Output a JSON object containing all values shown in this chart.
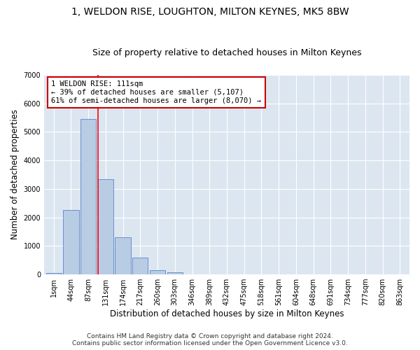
{
  "title": "1, WELDON RISE, LOUGHTON, MILTON KEYNES, MK5 8BW",
  "subtitle": "Size of property relative to detached houses in Milton Keynes",
  "xlabel": "Distribution of detached houses by size in Milton Keynes",
  "ylabel": "Number of detached properties",
  "footer_line1": "Contains HM Land Registry data © Crown copyright and database right 2024.",
  "footer_line2": "Contains public sector information licensed under the Open Government Licence v3.0.",
  "bar_labels": [
    "1sqm",
    "44sqm",
    "87sqm",
    "131sqm",
    "174sqm",
    "217sqm",
    "260sqm",
    "303sqm",
    "346sqm",
    "389sqm",
    "432sqm",
    "475sqm",
    "518sqm",
    "561sqm",
    "604sqm",
    "648sqm",
    "691sqm",
    "734sqm",
    "777sqm",
    "820sqm",
    "863sqm"
  ],
  "bar_values": [
    50,
    2250,
    5450,
    3350,
    1300,
    600,
    150,
    80,
    0,
    0,
    0,
    0,
    0,
    0,
    0,
    0,
    0,
    0,
    0,
    0,
    0
  ],
  "bar_color": "#b8cce4",
  "bar_edge_color": "#4472c4",
  "fig_bg_color": "#ffffff",
  "plot_bg_color": "#dce6f1",
  "annotation_line1": "1 WELDON RISE: 111sqm",
  "annotation_line2": "← 39% of detached houses are smaller (5,107)",
  "annotation_line3": "61% of semi-detached houses are larger (8,070) →",
  "annotation_box_color": "#ffffff",
  "annotation_box_edge": "#cc0000",
  "redline_x": 2.55,
  "ylim": [
    0,
    7000
  ],
  "yticks": [
    0,
    1000,
    2000,
    3000,
    4000,
    5000,
    6000,
    7000
  ],
  "grid_color": "#ffffff",
  "title_fontsize": 10,
  "subtitle_fontsize": 9,
  "axis_label_fontsize": 8.5,
  "tick_fontsize": 7,
  "footer_fontsize": 6.5,
  "annotation_fontsize": 7.5
}
